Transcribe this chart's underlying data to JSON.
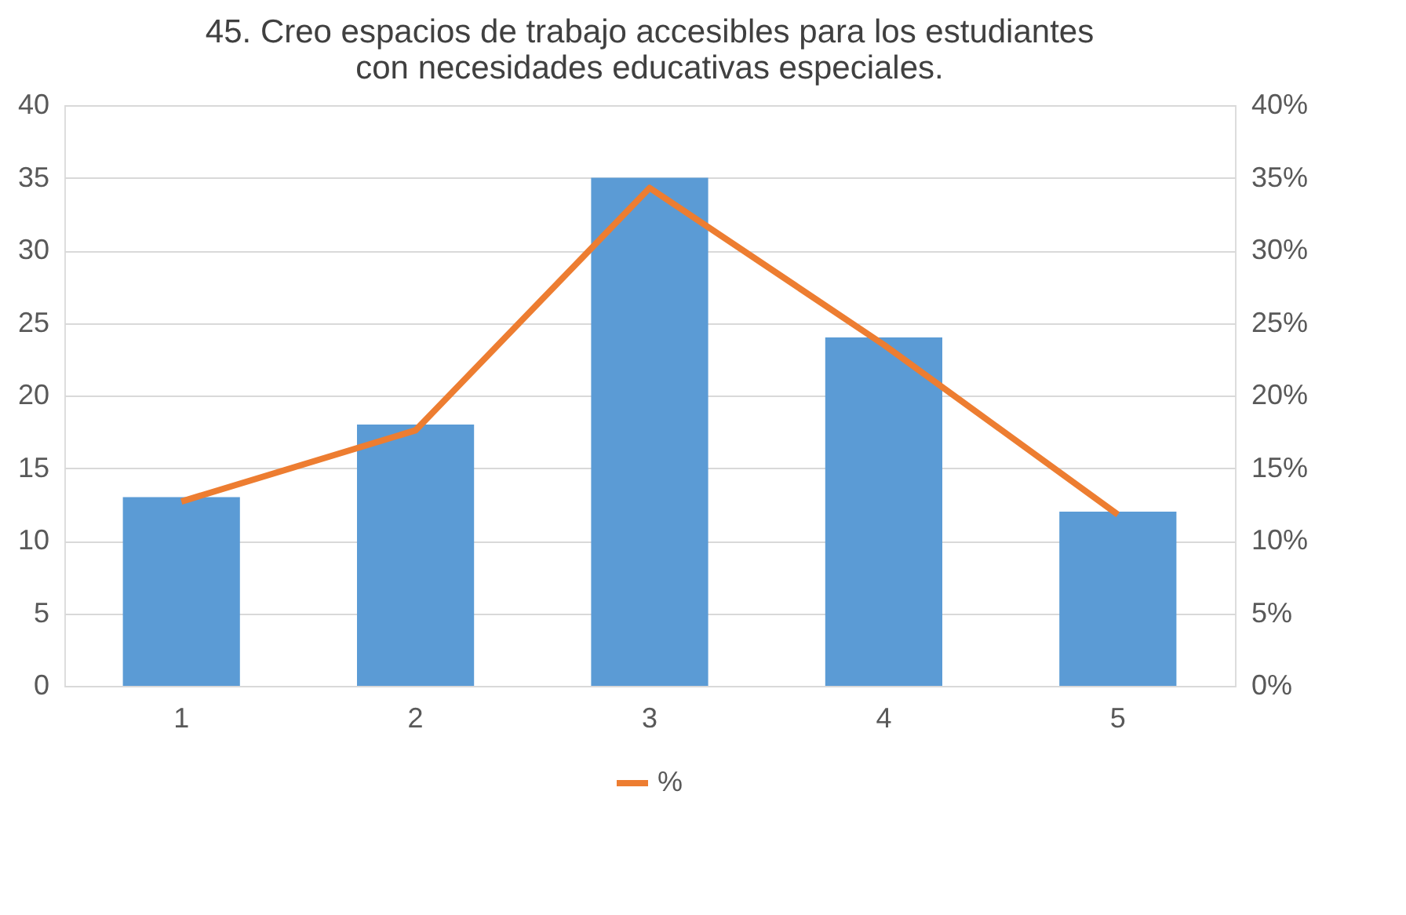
{
  "chart_data": {
    "type": "bar",
    "title": "45. Creo espacios de trabajo accesibles para los estudiantes con necesidades educativas especiales.",
    "categories": [
      "1",
      "2",
      "3",
      "4",
      "5"
    ],
    "series": [
      {
        "color": "#5b9bd5",
        "values": [
          13,
          18,
          35,
          24,
          12
        ]
      },
      {
        "type": "line",
        "name": "%",
        "color": "#ed7d31",
        "axis": "y2",
        "values": [
          12.7,
          17.6,
          34.3,
          23.5,
          11.8
        ]
      }
    ],
    "ylim": [
      0,
      40
    ],
    "yticks": [
      0,
      5,
      10,
      15,
      20,
      25,
      30,
      35,
      40
    ],
    "y2lim": [
      0,
      40
    ],
    "y2ticks": [
      {
        "value": 0,
        "label": "0%"
      },
      {
        "value": 5,
        "label": "5%"
      },
      {
        "value": 10,
        "label": "10%"
      },
      {
        "value": 15,
        "label": "15%"
      },
      {
        "value": 20,
        "label": "20%"
      },
      {
        "value": 25,
        "label": "25%"
      },
      {
        "value": 30,
        "label": "30%"
      },
      {
        "value": 35,
        "label": "35%"
      },
      {
        "value": 40,
        "label": "40%"
      }
    ],
    "grid": "y",
    "legend": "bottom",
    "marker": "none",
    "line_style": "solid"
  }
}
